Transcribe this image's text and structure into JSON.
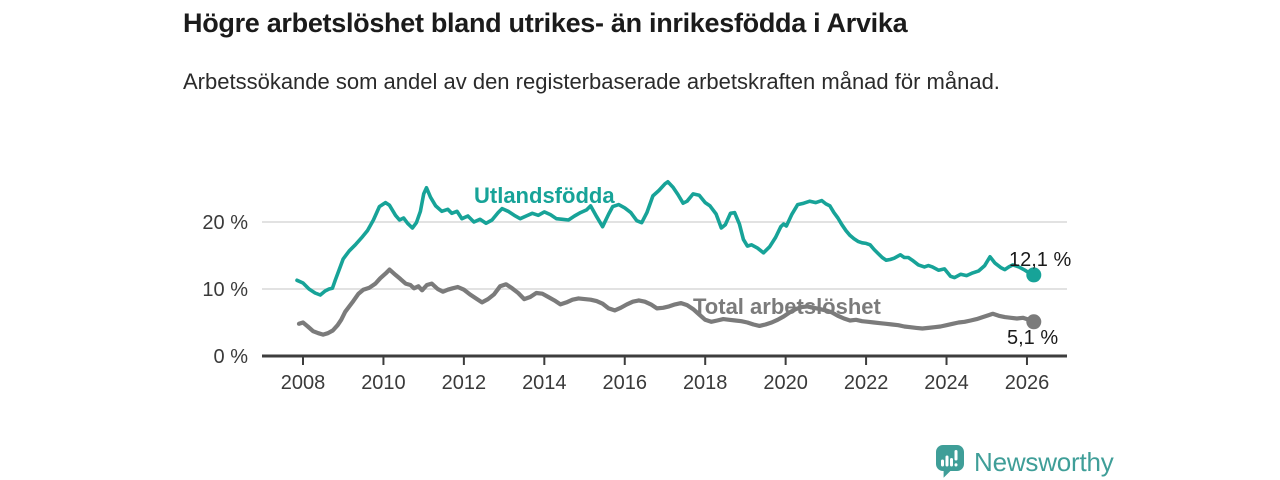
{
  "chart_data": {
    "type": "line",
    "title": "Högre arbetslöshet bland utrikes- än inrikesfödda i Arvika",
    "subtitle": "Arbetssökande som andel av den registerbaserade arbetskraften månad för månad.",
    "xlabel": "",
    "ylabel": "",
    "xlim": [
      2007.8,
      2027.0
    ],
    "ylim": [
      0,
      27
    ],
    "grid": "horizontal",
    "grid_color": "#d9d9d9",
    "axis_color": "#3d3d3d",
    "tick_label_color": "#3a3a3a",
    "legend": "inline-labels",
    "y_ticks": [
      {
        "y": 0,
        "label": "0 %"
      },
      {
        "y": 10,
        "label": "10 %"
      },
      {
        "y": 20,
        "label": "20 %"
      }
    ],
    "x_ticks": [
      {
        "x": 2008,
        "label": "2008"
      },
      {
        "x": 2010,
        "label": "2010"
      },
      {
        "x": 2012,
        "label": "2012"
      },
      {
        "x": 2014,
        "label": "2014"
      },
      {
        "x": 2016,
        "label": "2016"
      },
      {
        "x": 2018,
        "label": "2018"
      },
      {
        "x": 2020,
        "label": "2020"
      },
      {
        "x": 2022,
        "label": "2022"
      },
      {
        "x": 2024,
        "label": "2024"
      },
      {
        "x": 2026,
        "label": "2026"
      }
    ],
    "series": [
      {
        "name": "Utlandsfödda",
        "color": "#17a398",
        "end_label": "12,1 %",
        "end_value": 12.1,
        "points": [
          [
            2007.85,
            11.3
          ],
          [
            2008.0,
            10.9
          ],
          [
            2008.15,
            10.0
          ],
          [
            2008.3,
            9.4
          ],
          [
            2008.43,
            9.1
          ],
          [
            2008.55,
            9.7
          ],
          [
            2008.65,
            10.0
          ],
          [
            2008.73,
            10.1
          ],
          [
            2008.8,
            11.3
          ],
          [
            2008.9,
            12.9
          ],
          [
            2009.0,
            14.5
          ],
          [
            2009.15,
            15.7
          ],
          [
            2009.3,
            16.6
          ],
          [
            2009.45,
            17.6
          ],
          [
            2009.6,
            18.7
          ],
          [
            2009.75,
            20.3
          ],
          [
            2009.9,
            22.3
          ],
          [
            2010.05,
            22.9
          ],
          [
            2010.15,
            22.5
          ],
          [
            2010.3,
            21.0
          ],
          [
            2010.4,
            20.3
          ],
          [
            2010.5,
            20.6
          ],
          [
            2010.6,
            19.8
          ],
          [
            2010.72,
            19.1
          ],
          [
            2010.82,
            19.9
          ],
          [
            2010.92,
            21.6
          ],
          [
            2011.0,
            24.2
          ],
          [
            2011.07,
            25.1
          ],
          [
            2011.17,
            23.7
          ],
          [
            2011.3,
            22.4
          ],
          [
            2011.45,
            21.6
          ],
          [
            2011.6,
            21.9
          ],
          [
            2011.7,
            21.3
          ],
          [
            2011.83,
            21.6
          ],
          [
            2011.95,
            20.5
          ],
          [
            2012.1,
            20.9
          ],
          [
            2012.25,
            20.0
          ],
          [
            2012.4,
            20.4
          ],
          [
            2012.55,
            19.8
          ],
          [
            2012.7,
            20.3
          ],
          [
            2012.85,
            21.4
          ],
          [
            2012.95,
            22.0
          ],
          [
            2013.1,
            21.6
          ],
          [
            2013.25,
            21.0
          ],
          [
            2013.4,
            20.5
          ],
          [
            2013.55,
            20.9
          ],
          [
            2013.7,
            21.3
          ],
          [
            2013.85,
            21.0
          ],
          [
            2014.0,
            21.5
          ],
          [
            2014.15,
            21.1
          ],
          [
            2014.3,
            20.5
          ],
          [
            2014.45,
            20.4
          ],
          [
            2014.6,
            20.3
          ],
          [
            2014.75,
            20.9
          ],
          [
            2014.9,
            21.4
          ],
          [
            2015.05,
            21.8
          ],
          [
            2015.15,
            22.4
          ],
          [
            2015.3,
            20.8
          ],
          [
            2015.45,
            19.3
          ],
          [
            2015.6,
            21.2
          ],
          [
            2015.7,
            22.3
          ],
          [
            2015.85,
            22.6
          ],
          [
            2016.0,
            22.1
          ],
          [
            2016.15,
            21.4
          ],
          [
            2016.3,
            20.2
          ],
          [
            2016.42,
            19.9
          ],
          [
            2016.55,
            21.4
          ],
          [
            2016.7,
            23.9
          ],
          [
            2016.85,
            24.7
          ],
          [
            2017.0,
            25.7
          ],
          [
            2017.07,
            26.0
          ],
          [
            2017.2,
            25.2
          ],
          [
            2017.32,
            24.1
          ],
          [
            2017.45,
            22.8
          ],
          [
            2017.55,
            23.1
          ],
          [
            2017.7,
            24.2
          ],
          [
            2017.85,
            24.0
          ],
          [
            2018.0,
            22.9
          ],
          [
            2018.12,
            22.4
          ],
          [
            2018.27,
            21.2
          ],
          [
            2018.4,
            19.1
          ],
          [
            2018.5,
            19.6
          ],
          [
            2018.63,
            21.3
          ],
          [
            2018.73,
            21.4
          ],
          [
            2018.85,
            19.7
          ],
          [
            2018.95,
            17.4
          ],
          [
            2019.05,
            16.4
          ],
          [
            2019.15,
            16.6
          ],
          [
            2019.3,
            16.1
          ],
          [
            2019.45,
            15.4
          ],
          [
            2019.6,
            16.3
          ],
          [
            2019.75,
            17.7
          ],
          [
            2019.88,
            19.3
          ],
          [
            2019.95,
            19.7
          ],
          [
            2020.02,
            19.4
          ],
          [
            2020.15,
            21.1
          ],
          [
            2020.3,
            22.6
          ],
          [
            2020.45,
            22.8
          ],
          [
            2020.6,
            23.1
          ],
          [
            2020.75,
            22.9
          ],
          [
            2020.9,
            23.2
          ],
          [
            2021.0,
            22.7
          ],
          [
            2021.1,
            22.4
          ],
          [
            2021.2,
            21.4
          ],
          [
            2021.3,
            20.6
          ],
          [
            2021.4,
            19.6
          ],
          [
            2021.5,
            18.7
          ],
          [
            2021.6,
            18.0
          ],
          [
            2021.7,
            17.5
          ],
          [
            2021.8,
            17.1
          ],
          [
            2021.9,
            16.9
          ],
          [
            2022.0,
            16.8
          ],
          [
            2022.1,
            16.6
          ],
          [
            2022.2,
            15.9
          ],
          [
            2022.3,
            15.3
          ],
          [
            2022.4,
            14.7
          ],
          [
            2022.5,
            14.3
          ],
          [
            2022.6,
            14.4
          ],
          [
            2022.7,
            14.6
          ],
          [
            2022.85,
            15.1
          ],
          [
            2022.95,
            14.7
          ],
          [
            2023.05,
            14.7
          ],
          [
            2023.15,
            14.3
          ],
          [
            2023.3,
            13.6
          ],
          [
            2023.45,
            13.3
          ],
          [
            2023.55,
            13.5
          ],
          [
            2023.65,
            13.3
          ],
          [
            2023.8,
            12.8
          ],
          [
            2023.95,
            13.0
          ],
          [
            2024.1,
            11.9
          ],
          [
            2024.2,
            11.7
          ],
          [
            2024.35,
            12.2
          ],
          [
            2024.5,
            12.0
          ],
          [
            2024.65,
            12.4
          ],
          [
            2024.8,
            12.7
          ],
          [
            2024.95,
            13.5
          ],
          [
            2025.08,
            14.8
          ],
          [
            2025.2,
            13.9
          ],
          [
            2025.35,
            13.2
          ],
          [
            2025.45,
            12.9
          ],
          [
            2025.55,
            13.3
          ],
          [
            2025.65,
            13.6
          ],
          [
            2025.8,
            13.3
          ],
          [
            2025.95,
            12.8
          ],
          [
            2026.08,
            12.3
          ],
          [
            2026.17,
            12.1
          ]
        ]
      },
      {
        "name": "Total arbetslöshet",
        "color": "#7b7b7b",
        "end_label": "5,1 %",
        "end_value": 5.1,
        "points": [
          [
            2007.9,
            4.8
          ],
          [
            2008.0,
            5.0
          ],
          [
            2008.12,
            4.4
          ],
          [
            2008.25,
            3.7
          ],
          [
            2008.38,
            3.4
          ],
          [
            2008.5,
            3.2
          ],
          [
            2008.62,
            3.4
          ],
          [
            2008.74,
            3.8
          ],
          [
            2008.86,
            4.6
          ],
          [
            2008.95,
            5.4
          ],
          [
            2009.05,
            6.6
          ],
          [
            2009.15,
            7.4
          ],
          [
            2009.25,
            8.2
          ],
          [
            2009.38,
            9.3
          ],
          [
            2009.5,
            9.9
          ],
          [
            2009.65,
            10.2
          ],
          [
            2009.8,
            10.8
          ],
          [
            2009.92,
            11.6
          ],
          [
            2010.05,
            12.3
          ],
          [
            2010.15,
            12.9
          ],
          [
            2010.3,
            12.1
          ],
          [
            2010.42,
            11.5
          ],
          [
            2010.55,
            10.8
          ],
          [
            2010.67,
            10.6
          ],
          [
            2010.76,
            10.1
          ],
          [
            2010.87,
            10.4
          ],
          [
            2010.96,
            9.8
          ],
          [
            2011.08,
            10.6
          ],
          [
            2011.2,
            10.8
          ],
          [
            2011.35,
            10.0
          ],
          [
            2011.48,
            9.6
          ],
          [
            2011.6,
            9.9
          ],
          [
            2011.72,
            10.1
          ],
          [
            2011.85,
            10.3
          ],
          [
            2012.0,
            9.9
          ],
          [
            2012.15,
            9.2
          ],
          [
            2012.3,
            8.6
          ],
          [
            2012.45,
            8.0
          ],
          [
            2012.6,
            8.5
          ],
          [
            2012.75,
            9.2
          ],
          [
            2012.9,
            10.4
          ],
          [
            2013.05,
            10.7
          ],
          [
            2013.2,
            10.1
          ],
          [
            2013.35,
            9.4
          ],
          [
            2013.5,
            8.5
          ],
          [
            2013.65,
            8.8
          ],
          [
            2013.8,
            9.4
          ],
          [
            2013.95,
            9.3
          ],
          [
            2014.1,
            8.8
          ],
          [
            2014.25,
            8.3
          ],
          [
            2014.4,
            7.7
          ],
          [
            2014.55,
            8.0
          ],
          [
            2014.7,
            8.4
          ],
          [
            2014.85,
            8.6
          ],
          [
            2015.0,
            8.5
          ],
          [
            2015.15,
            8.4
          ],
          [
            2015.3,
            8.2
          ],
          [
            2015.45,
            7.8
          ],
          [
            2015.6,
            7.1
          ],
          [
            2015.75,
            6.8
          ],
          [
            2015.9,
            7.2
          ],
          [
            2016.05,
            7.7
          ],
          [
            2016.2,
            8.1
          ],
          [
            2016.35,
            8.3
          ],
          [
            2016.5,
            8.1
          ],
          [
            2016.65,
            7.7
          ],
          [
            2016.8,
            7.1
          ],
          [
            2016.95,
            7.2
          ],
          [
            2017.1,
            7.4
          ],
          [
            2017.25,
            7.7
          ],
          [
            2017.4,
            7.9
          ],
          [
            2017.55,
            7.6
          ],
          [
            2017.7,
            7.0
          ],
          [
            2017.85,
            6.2
          ],
          [
            2018.0,
            5.4
          ],
          [
            2018.15,
            5.1
          ],
          [
            2018.3,
            5.3
          ],
          [
            2018.45,
            5.5
          ],
          [
            2018.6,
            5.4
          ],
          [
            2018.75,
            5.3
          ],
          [
            2018.9,
            5.2
          ],
          [
            2019.05,
            5.0
          ],
          [
            2019.2,
            4.7
          ],
          [
            2019.35,
            4.5
          ],
          [
            2019.5,
            4.7
          ],
          [
            2019.65,
            5.0
          ],
          [
            2019.8,
            5.4
          ],
          [
            2019.95,
            5.9
          ],
          [
            2020.1,
            6.5
          ],
          [
            2020.25,
            7.0
          ],
          [
            2020.4,
            7.3
          ],
          [
            2020.55,
            7.4
          ],
          [
            2020.7,
            7.2
          ],
          [
            2020.85,
            7.0
          ],
          [
            2021.0,
            6.8
          ],
          [
            2021.15,
            6.5
          ],
          [
            2021.3,
            6.0
          ],
          [
            2021.45,
            5.6
          ],
          [
            2021.6,
            5.3
          ],
          [
            2021.75,
            5.4
          ],
          [
            2021.9,
            5.2
          ],
          [
            2022.05,
            5.1
          ],
          [
            2022.2,
            5.0
          ],
          [
            2022.35,
            4.9
          ],
          [
            2022.5,
            4.8
          ],
          [
            2022.65,
            4.7
          ],
          [
            2022.8,
            4.6
          ],
          [
            2022.95,
            4.4
          ],
          [
            2023.1,
            4.3
          ],
          [
            2023.25,
            4.2
          ],
          [
            2023.4,
            4.1
          ],
          [
            2023.55,
            4.2
          ],
          [
            2023.7,
            4.3
          ],
          [
            2023.85,
            4.4
          ],
          [
            2024.0,
            4.6
          ],
          [
            2024.15,
            4.8
          ],
          [
            2024.3,
            5.0
          ],
          [
            2024.45,
            5.1
          ],
          [
            2024.6,
            5.3
          ],
          [
            2024.75,
            5.5
          ],
          [
            2024.9,
            5.8
          ],
          [
            2025.05,
            6.1
          ],
          [
            2025.15,
            6.3
          ],
          [
            2025.3,
            6.0
          ],
          [
            2025.45,
            5.8
          ],
          [
            2025.6,
            5.7
          ],
          [
            2025.75,
            5.6
          ],
          [
            2025.9,
            5.7
          ],
          [
            2026.0,
            5.5
          ],
          [
            2026.17,
            5.1
          ]
        ]
      }
    ]
  },
  "footer": {
    "brand": "Newsworthy",
    "brand_color": "#3f9e98"
  }
}
